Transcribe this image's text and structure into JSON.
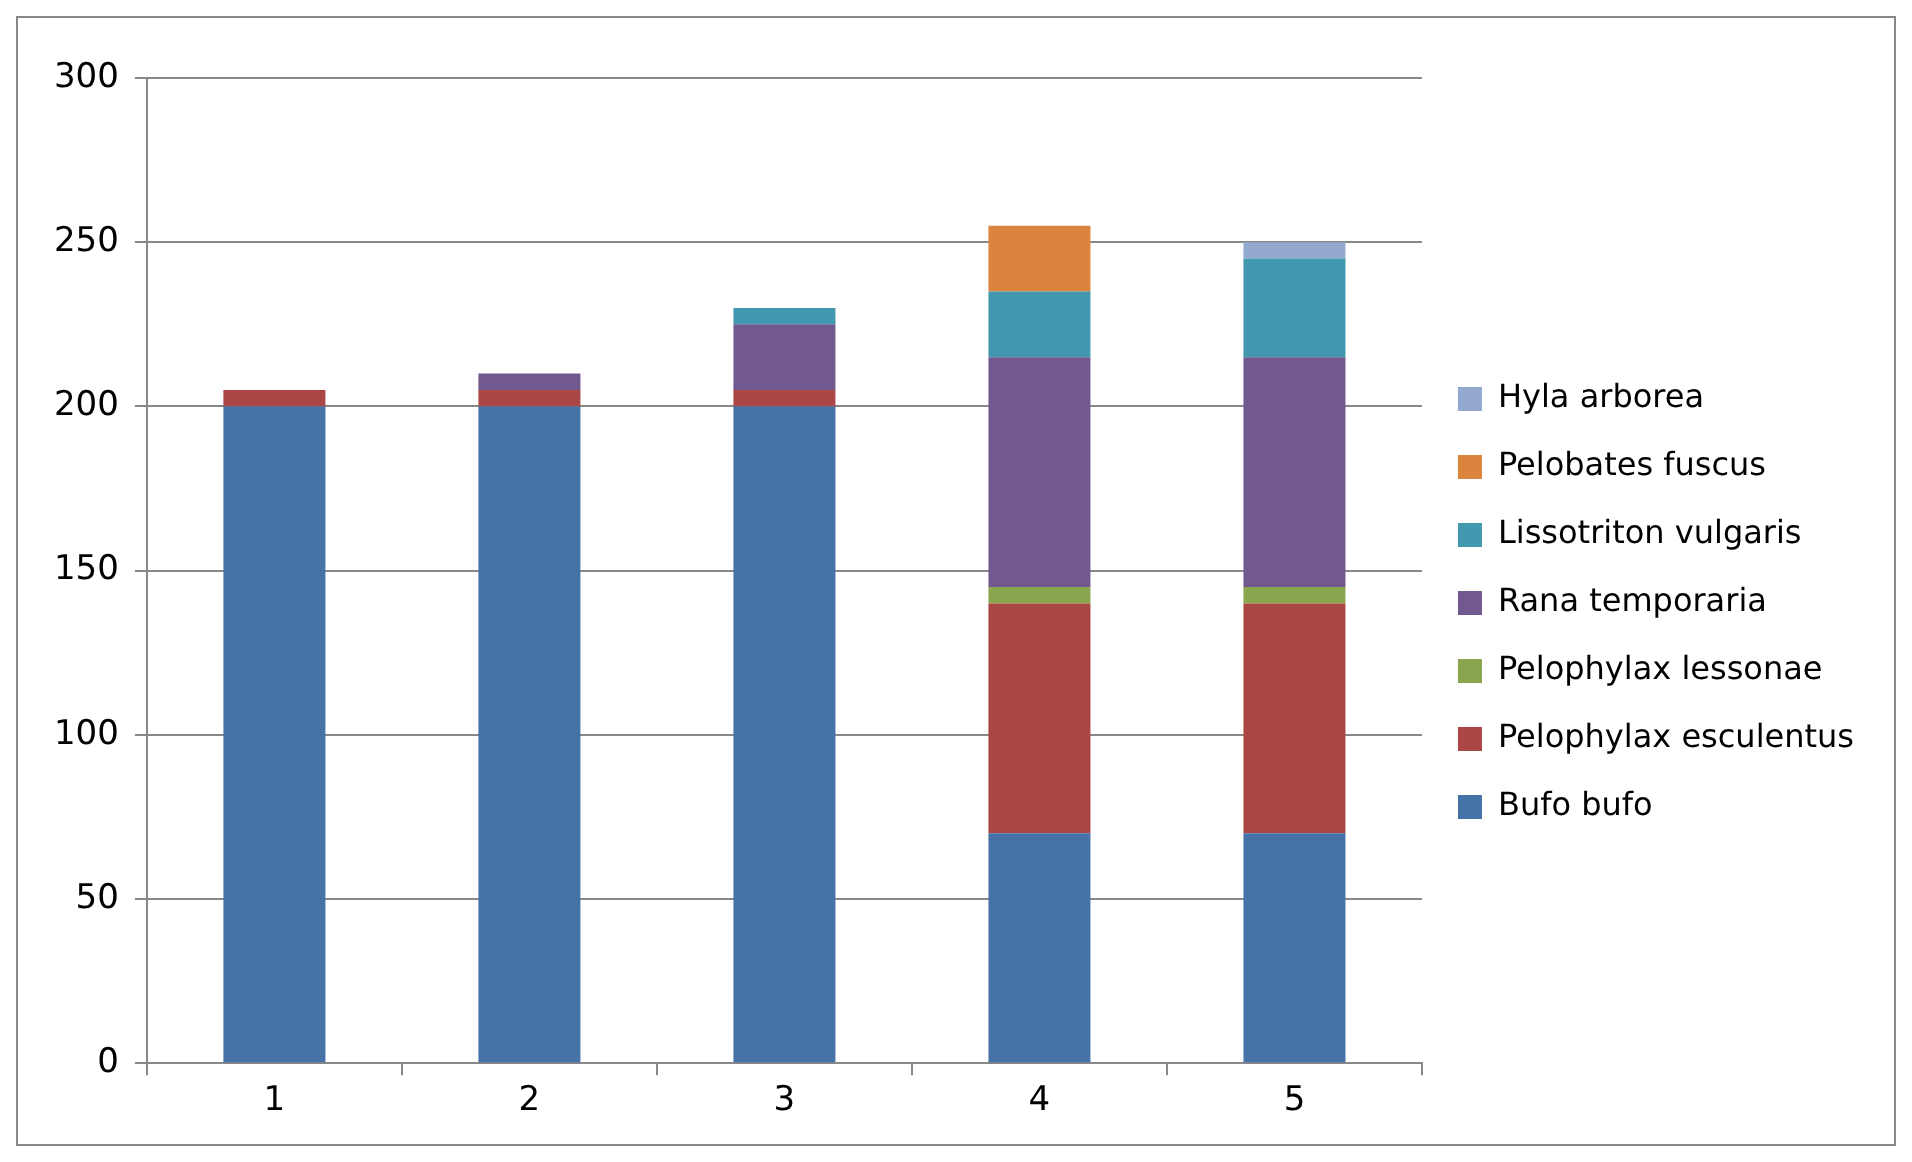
{
  "chart_data": {
    "type": "bar",
    "stacked": true,
    "categories": [
      "1",
      "2",
      "3",
      "4",
      "5"
    ],
    "series": [
      {
        "name": "Bufo bufo",
        "color": "#4572a7",
        "values": [
          200,
          200,
          200,
          70,
          70
        ]
      },
      {
        "name": "Pelophylax esculentus",
        "color": "#aa4643",
        "values": [
          5,
          5,
          5,
          70,
          70
        ]
      },
      {
        "name": "Pelophylax lessonae",
        "color": "#89a54e",
        "values": [
          0,
          0,
          0,
          5,
          5
        ]
      },
      {
        "name": "Rana temporaria",
        "color": "#71588f",
        "values": [
          0,
          5,
          20,
          70,
          70
        ]
      },
      {
        "name": "Lissotriton vulgaris",
        "color": "#4198af",
        "values": [
          0,
          0,
          5,
          20,
          30
        ]
      },
      {
        "name": "Pelobates fuscus",
        "color": "#db843d",
        "values": [
          0,
          0,
          0,
          20,
          0
        ]
      },
      {
        "name": "Hyla arborea",
        "color": "#93a9cf",
        "values": [
          0,
          0,
          0,
          0,
          5
        ]
      }
    ],
    "ylim": [
      0,
      300
    ],
    "yticks": [
      0,
      50,
      100,
      150,
      200,
      250,
      300
    ],
    "grid": "y",
    "legend": "right"
  }
}
